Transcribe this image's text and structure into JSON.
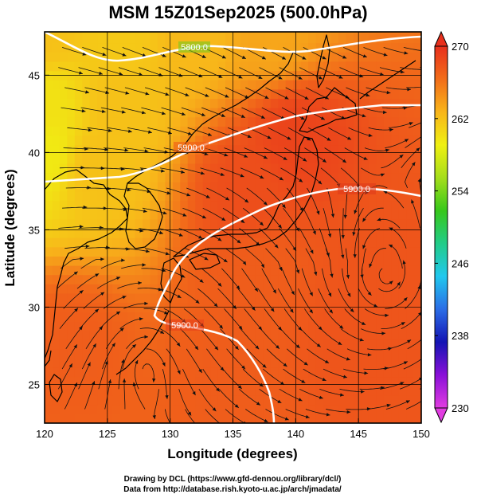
{
  "title": "MSM 15Z01Sep2025 (500.0hPa)",
  "xlabel": "Longitude (degrees)",
  "ylabel": "Latitude  (degrees)",
  "credits": [
    "Drawing by DCL (https://www.gfd-dennou.org/library/dcl/)",
    "Data from http://database.rish.kyoto-u.ac.jp/arch/jmadata/"
  ],
  "chart_data": {
    "type": "heatmap",
    "title": "MSM 15Z01Sep2025 (500.0hPa)",
    "xlabel": "Longitude (degrees)",
    "ylabel": "Latitude  (degrees)",
    "xlim": [
      120,
      150
    ],
    "ylim": [
      22.5,
      47.8
    ],
    "x_ticks": [
      120,
      125,
      130,
      135,
      140,
      145,
      150
    ],
    "y_ticks": [
      25,
      30,
      35,
      40,
      45
    ],
    "grid": true,
    "colorbar": {
      "min": 230,
      "max": 270,
      "ticks": [
        230,
        238,
        246,
        254,
        262,
        270
      ],
      "palette": [
        "#e13ce1",
        "#8a10d8",
        "#1414b4",
        "#2b6de6",
        "#20c8ee",
        "#22cc88",
        "#37c81b",
        "#a5de1b",
        "#f0f012",
        "#f8b51a",
        "#f26d1a",
        "#e8301c"
      ]
    },
    "contour_labels": [
      "5800.0",
      "5900.0",
      "5900.0",
      "5900.0"
    ],
    "features": {
      "typhoon_center": {
        "lon": 147.3,
        "lat": 32.0
      },
      "vectors": "wind streamlines"
    },
    "cold_anchors": [
      {
        "lon": 120,
        "lat": 47.8,
        "value": 262.0
      },
      {
        "lon": 126,
        "lat": 47.8,
        "value": 261.5
      },
      {
        "lon": 132,
        "lat": 47.8,
        "value": 262.5
      },
      {
        "lon": 138,
        "lat": 47.8,
        "value": 263.5
      },
      {
        "lon": 120,
        "lat": 43.0,
        "value": 260.0
      },
      {
        "lon": 120,
        "lat": 40.0,
        "value": 259.5
      },
      {
        "lon": 126,
        "lat": 43.0,
        "value": 262.0
      },
      {
        "lon": 124,
        "lat": 39.0,
        "value": 262.0
      }
    ],
    "warm_anchors": [
      {
        "lon": 136,
        "lat": 37.5,
        "value": 268.2
      },
      {
        "lon": 140,
        "lat": 41.0,
        "value": 268.8
      },
      {
        "lon": 137,
        "lat": 32.0,
        "value": 267.3
      },
      {
        "lon": 122,
        "lat": 27.5,
        "value": 267.3
      },
      {
        "lon": 135,
        "lat": 25.5,
        "value": 267.3
      },
      {
        "lon": 145,
        "lat": 28.0,
        "value": 267.8
      },
      {
        "lon": 147,
        "lat": 32.0,
        "value": 267.8
      }
    ]
  }
}
